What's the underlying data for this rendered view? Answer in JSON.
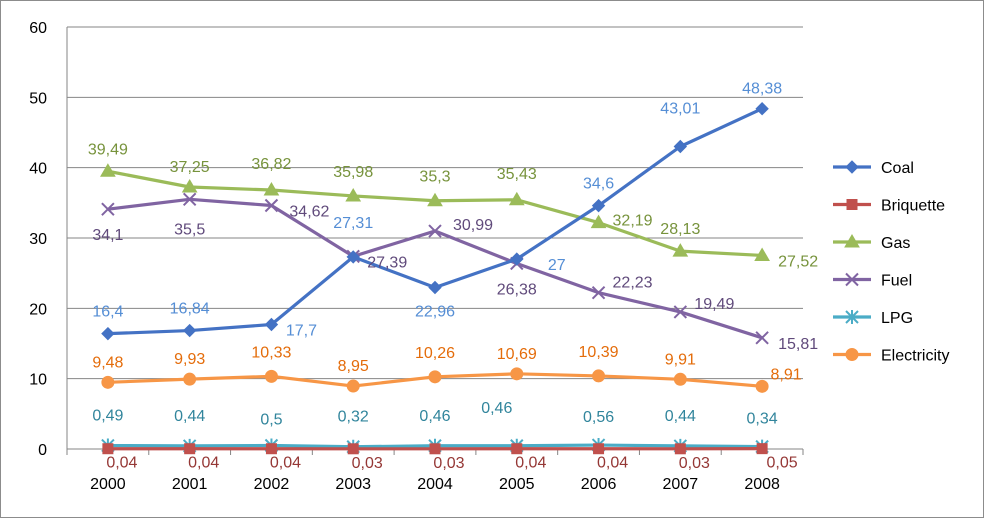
{
  "colors": {
    "Coal": "#4472C4",
    "Briquette": "#C0504D",
    "Gas": "#9BBB59",
    "Fuel": "#8064A2",
    "LPG": "#4BACC6",
    "Electricity": "#F79646",
    "CoalLabel": "#558ED5",
    "BriquetteLabel": "#953735",
    "GasLabel": "#77933C",
    "FuelLabel": "#604A7B",
    "LPGLabel": "#31859C",
    "ElectricityLabel": "#E46C0A",
    "grid": "#868686"
  },
  "chart_data": {
    "type": "line",
    "x": [
      "2000",
      "2001",
      "2002",
      "2003",
      "2004",
      "2005",
      "2006",
      "2007",
      "2008"
    ],
    "ylim": [
      0,
      60
    ],
    "yticks": [
      "0",
      "10",
      "20",
      "30",
      "40",
      "50",
      "60"
    ],
    "grid": "horizontal",
    "legend_position": "right",
    "series": [
      {
        "name": "Coal",
        "marker": "diamond",
        "values": [
          16.4,
          16.84,
          17.7,
          27.31,
          22.96,
          27,
          34.6,
          43.01,
          48.38
        ],
        "labels": [
          "16,4",
          "16,84",
          "17,7",
          "27,31",
          "22,96",
          "27",
          "34,6",
          "43,01",
          "48,38"
        ]
      },
      {
        "name": "Briquette",
        "marker": "square",
        "values": [
          0.04,
          0.04,
          0.04,
          0.03,
          0.03,
          0.04,
          0.04,
          0.03,
          0.05
        ],
        "labels": [
          "0,04",
          "0,04",
          "0,04",
          "0,03",
          "0,03",
          "0,04",
          "0,04",
          "0,03",
          "0,05"
        ]
      },
      {
        "name": "Gas",
        "marker": "triangle",
        "values": [
          39.49,
          37.25,
          36.82,
          35.98,
          35.3,
          35.43,
          32.19,
          28.13,
          27.52
        ],
        "labels": [
          "39,49",
          "37,25",
          "36,82",
          "35,98",
          "35,3",
          "35,43",
          "32,19",
          "28,13",
          "27,52"
        ]
      },
      {
        "name": "Fuel",
        "marker": "x",
        "values": [
          34.1,
          35.5,
          34.62,
          27.39,
          30.99,
          26.38,
          22.23,
          19.49,
          15.81
        ],
        "labels": [
          "34,1",
          "35,5",
          "34,62",
          "27,39",
          "30,99",
          "26,38",
          "22,23",
          "19,49",
          "15,81"
        ]
      },
      {
        "name": "LPG",
        "marker": "star",
        "values": [
          0.49,
          0.44,
          0.5,
          0.32,
          0.46,
          0.46,
          0.56,
          0.44,
          0.34
        ],
        "labels": [
          "0,49",
          "0,44",
          "0,5",
          "0,32",
          "0,46",
          "0,46",
          "0,56",
          "0,44",
          "0,34"
        ]
      },
      {
        "name": "Electricity",
        "marker": "circle",
        "values": [
          9.48,
          9.93,
          10.33,
          8.95,
          10.26,
          10.69,
          10.39,
          9.91,
          8.91
        ],
        "labels": [
          "9,48",
          "9,93",
          "10,33",
          "8,95",
          "10,26",
          "10,69",
          "10,39",
          "9,91",
          "8,91"
        ]
      }
    ]
  }
}
